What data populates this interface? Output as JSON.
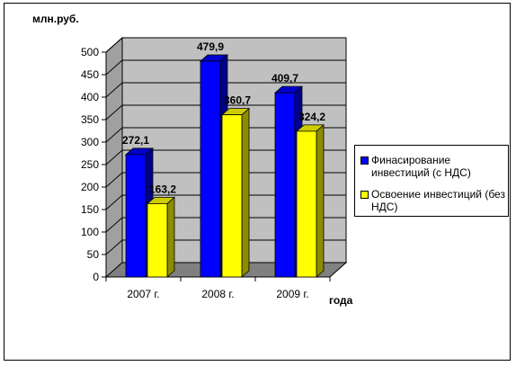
{
  "chart_data": {
    "type": "bar",
    "ylabel": "млн.руб.",
    "xlabel": "года",
    "categories": [
      "2007 г.",
      "2008 г.",
      "2009 г."
    ],
    "ylim": [
      0,
      500
    ],
    "yticks": [
      0,
      50,
      100,
      150,
      200,
      250,
      300,
      350,
      400,
      450,
      500
    ],
    "grid": true,
    "legend_position": "right",
    "three_d": true,
    "series": [
      {
        "name": "Финасирование инвестиций (с НДС)",
        "values": [
          272.1,
          479.9,
          409.7
        ],
        "labels": [
          "272,1",
          "479,9",
          "409,7"
        ],
        "color": "#0000ff"
      },
      {
        "name": "Освоение инвестиций (без НДС)",
        "values": [
          163.2,
          360.7,
          324.2
        ],
        "labels": [
          "163,2",
          "360,7",
          "324,2"
        ],
        "color": "#ffff00"
      }
    ],
    "wall_color": "#c0c0c0"
  }
}
